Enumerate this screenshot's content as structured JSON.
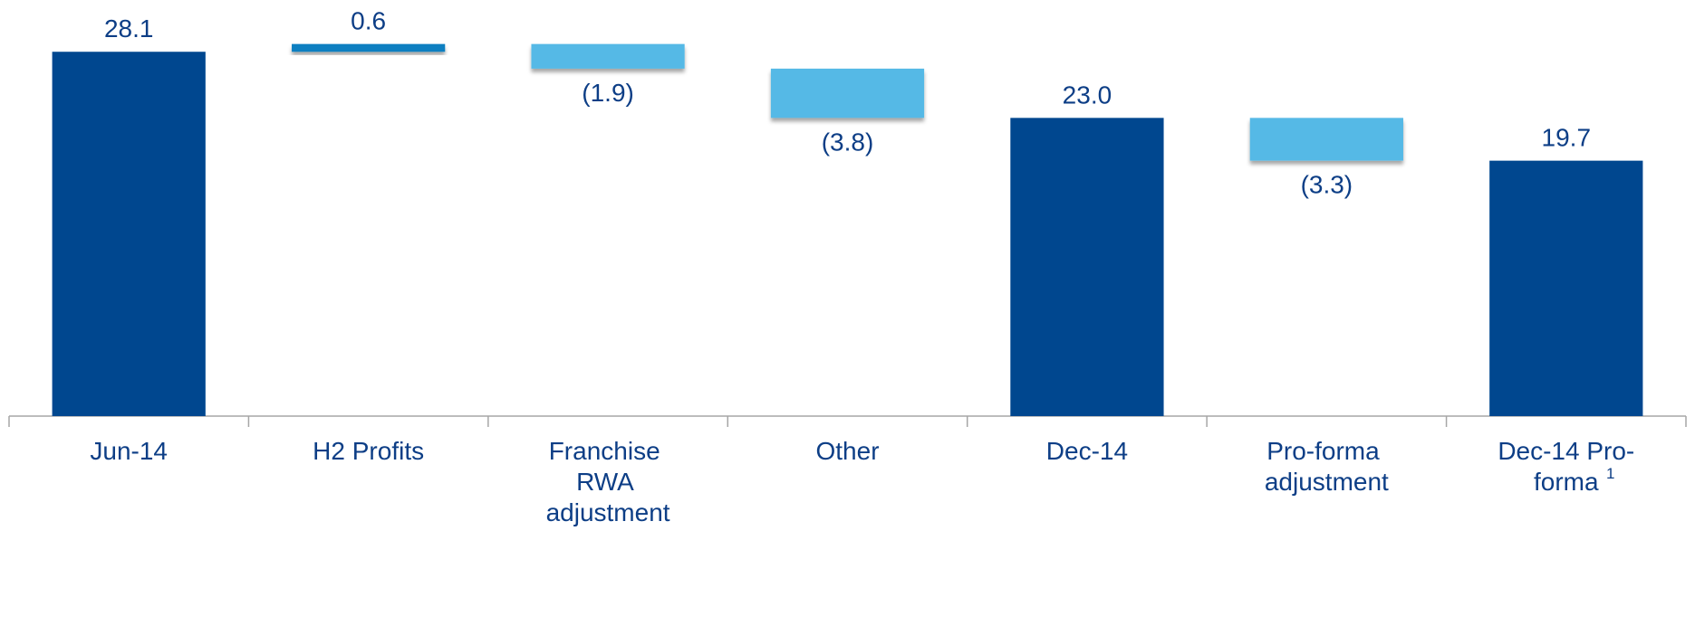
{
  "chart_data": {
    "type": "waterfall",
    "categories": [
      "Jun-14",
      "H2 Profits",
      "Franchise RWA adjustment",
      "Other",
      "Dec-14",
      "Pro-forma adjustment",
      "Dec-14 Pro-forma"
    ],
    "values": [
      28.1,
      0.6,
      -1.9,
      -3.8,
      23.0,
      -3.3,
      19.7
    ],
    "value_labels": [
      "28.1",
      "0.6",
      "(1.9)",
      "(3.8)",
      "23.0",
      "(3.3)",
      "19.7"
    ],
    "bar_kinds": [
      "total",
      "delta",
      "delta",
      "delta",
      "total",
      "delta",
      "total"
    ],
    "note_marks": [
      null,
      null,
      null,
      null,
      null,
      null,
      "1"
    ],
    "colors": {
      "total": "#00478f",
      "increase": "#0a7fc1",
      "decrease": "#55b9e6"
    },
    "ylim": [
      0,
      30
    ]
  }
}
